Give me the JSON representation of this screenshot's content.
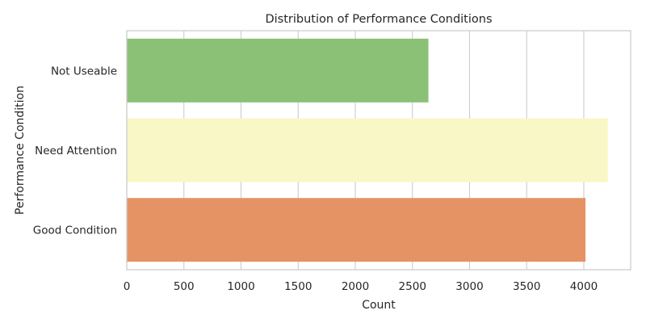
{
  "chart_data": {
    "type": "bar",
    "orientation": "horizontal",
    "title": "Distribution of Performance Conditions",
    "xlabel": "Count",
    "ylabel": "Performance Condition",
    "categories": [
      "Not Useable",
      "Need Attention",
      "Good Condition"
    ],
    "values": [
      2640,
      4210,
      4015
    ],
    "colors": [
      "#8bc176",
      "#f8f7c5",
      "#e59365"
    ],
    "xlim": [
      0,
      4410
    ],
    "xticks": [
      0,
      500,
      1000,
      1500,
      2000,
      2500,
      3000,
      3500,
      4000
    ],
    "grid": true
  }
}
